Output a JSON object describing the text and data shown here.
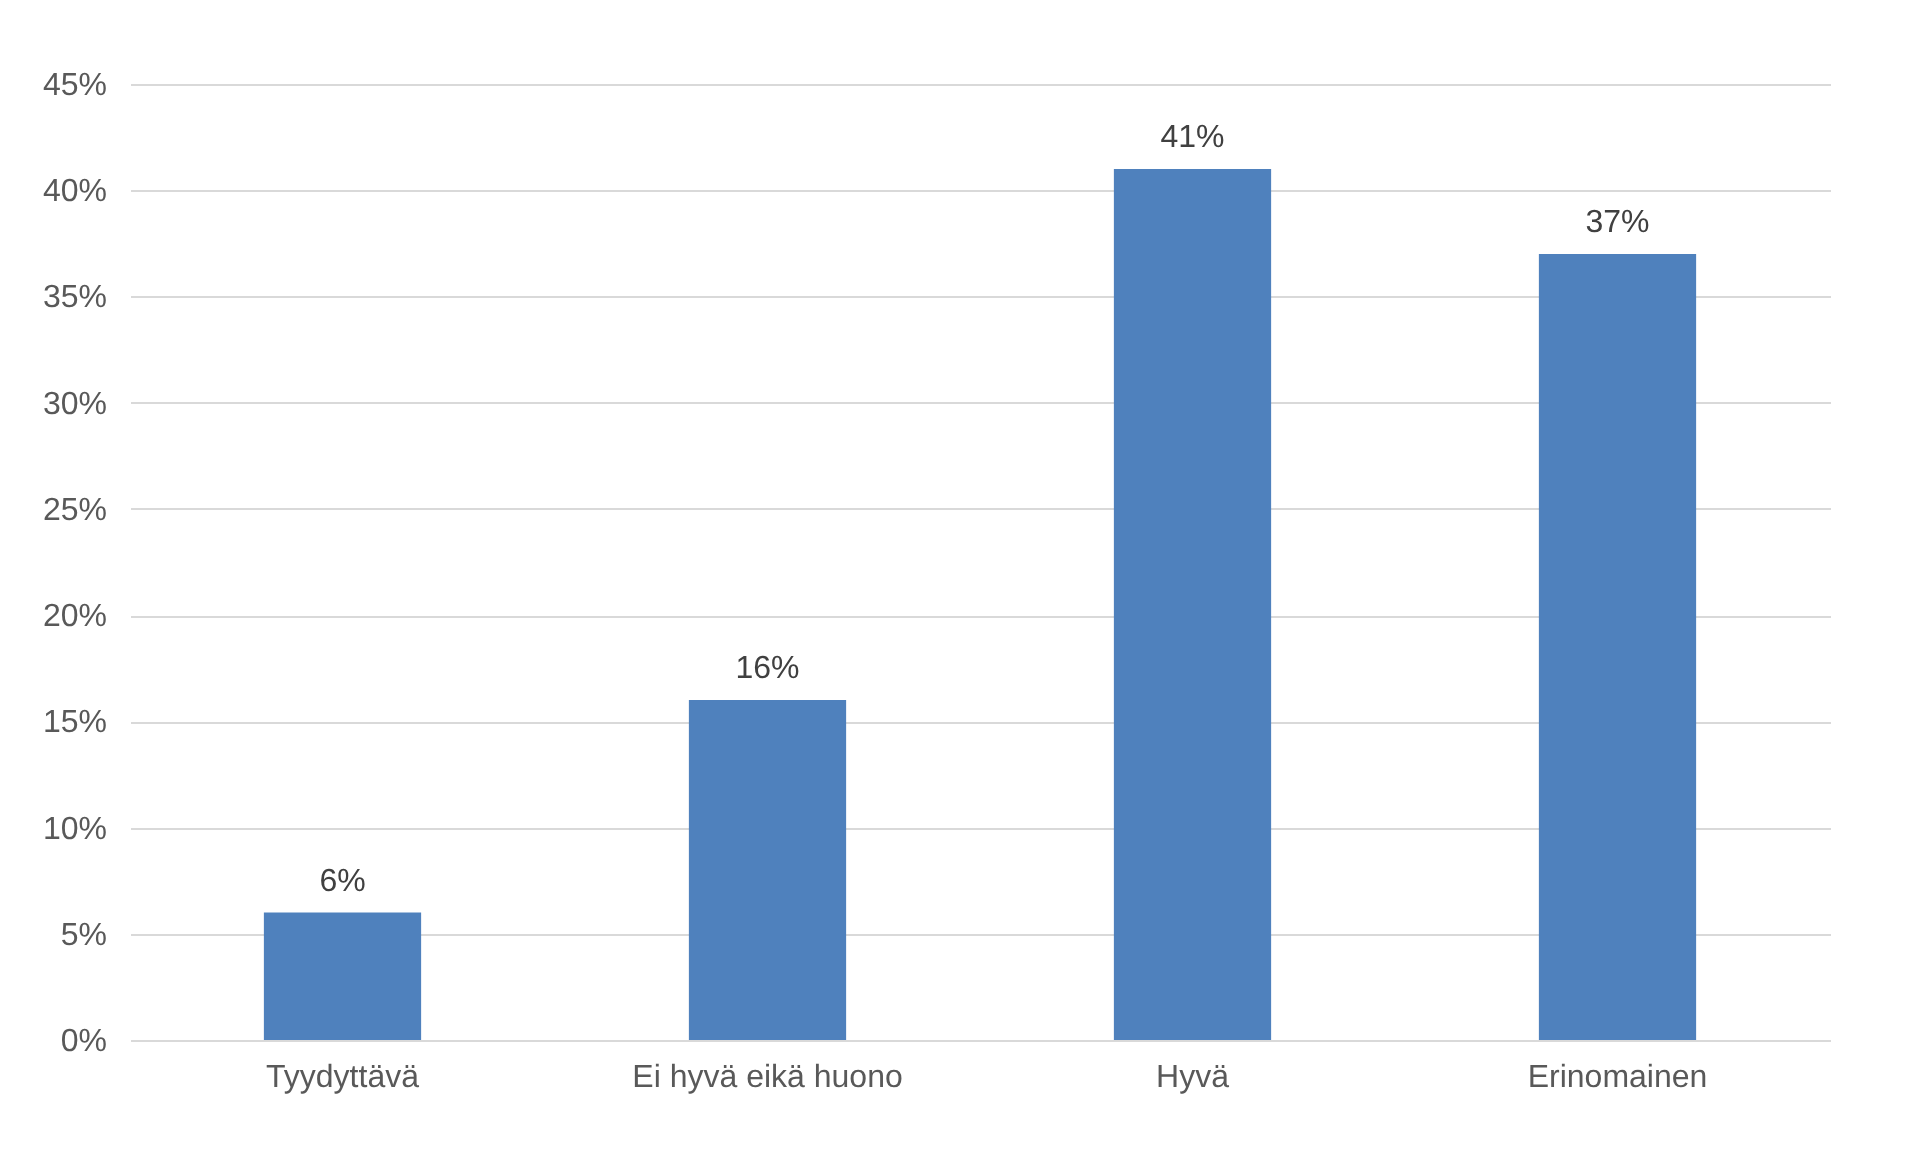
{
  "chart_data": {
    "type": "bar",
    "categories": [
      "Tyydyttävä",
      "Ei hyvä eikä huono",
      "Hyvä",
      "Erinomainen"
    ],
    "values": [
      6,
      16,
      41,
      37
    ],
    "value_labels": [
      "6%",
      "16%",
      "41%",
      "37%"
    ],
    "color": "#4f81bd",
    "ylim": [
      0,
      45
    ],
    "yticks": [
      {
        "value": 0,
        "label": "0%"
      },
      {
        "value": 5,
        "label": "5%"
      },
      {
        "value": 10,
        "label": "10%"
      },
      {
        "value": 15,
        "label": "15%"
      },
      {
        "value": 20,
        "label": "20%"
      },
      {
        "value": 25,
        "label": "25%"
      },
      {
        "value": 30,
        "label": "30%"
      },
      {
        "value": 35,
        "label": "35%"
      },
      {
        "value": 40,
        "label": "40%"
      },
      {
        "value": 45,
        "label": "45%"
      }
    ],
    "grid": true
  }
}
